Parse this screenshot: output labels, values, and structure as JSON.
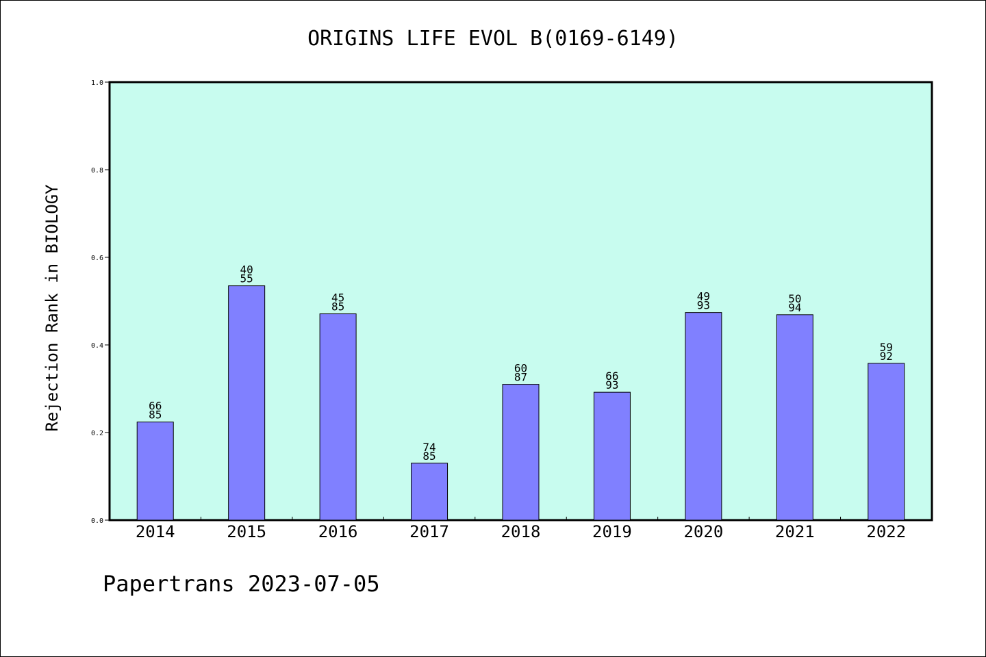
{
  "colors": {
    "plot_background": "#c8fcef",
    "bar_fill": "#8080ff",
    "bar_stroke": "#000000",
    "frame": "#000000",
    "text": "#000000"
  },
  "chart_data": {
    "type": "bar",
    "title": "ORIGINS LIFE EVOL B(0169-6149)",
    "xlabel": "",
    "ylabel": "Rejection Rank in BIOLOGY",
    "ylim": [
      0,
      1.0
    ],
    "yticks": [
      "0.0",
      "0.2",
      "0.4",
      "0.6",
      "0.8",
      "1.0"
    ],
    "grid": false,
    "categories": [
      "2014",
      "2015",
      "2016",
      "2017",
      "2018",
      "2019",
      "2020",
      "2021",
      "2022"
    ],
    "values": [
      0.224,
      0.535,
      0.471,
      0.13,
      0.31,
      0.292,
      0.474,
      0.469,
      0.358
    ],
    "label_top": [
      "66",
      "40",
      "45",
      "74",
      "60",
      "66",
      "49",
      "50",
      "59"
    ],
    "label_bottom": [
      "85",
      "55",
      "85",
      "85",
      "87",
      "93",
      "93",
      "94",
      "92"
    ]
  },
  "footer": {
    "watermark": "Papertrans 2023-07-05"
  }
}
